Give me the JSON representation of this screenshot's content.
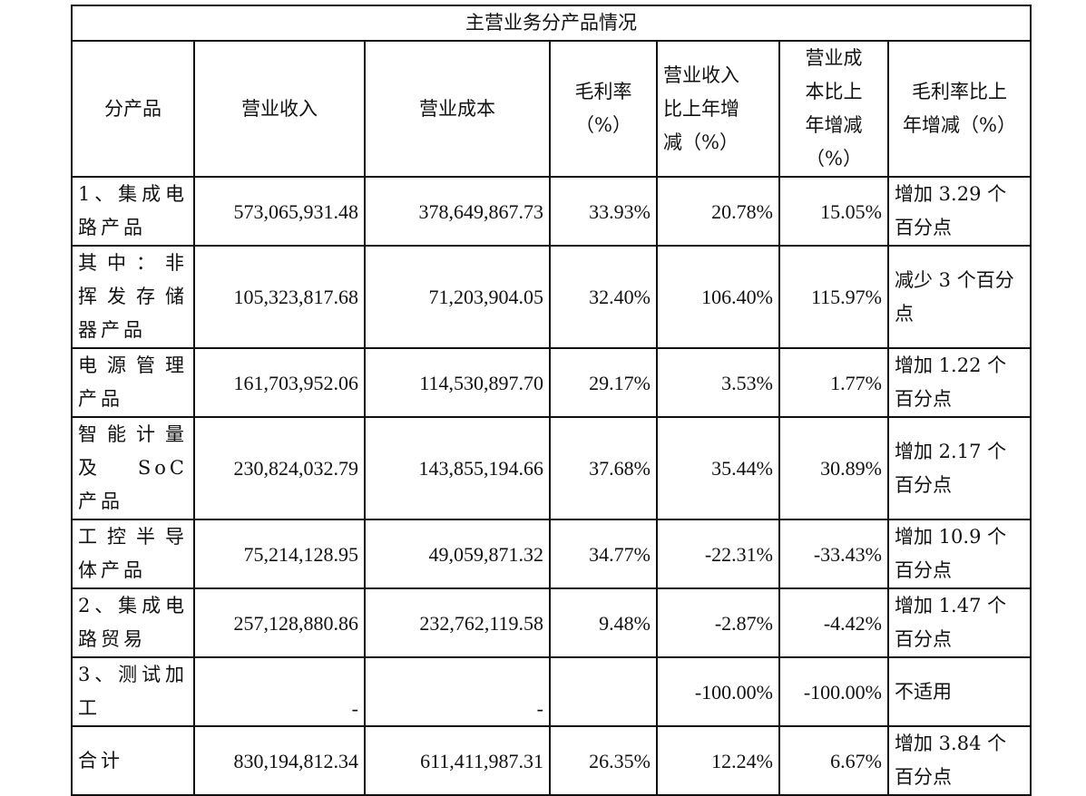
{
  "table_title": "主营业务分产品情况",
  "headers": {
    "product": "分产品",
    "revenue": "营业收入",
    "cost": "营业成本",
    "gross_margin": "毛利率\n（%）",
    "revenue_change": "营业收入\n比上年增\n减（%）",
    "cost_change": "营业成\n本比上\n年增减\n（%）",
    "margin_change": "毛利率比上\n年增减（%）"
  },
  "rows": [
    {
      "product": "1、集成电路产品",
      "revenue": "573,065,931.48",
      "cost": "378,649,867.73",
      "gross_margin": "33.93%",
      "revenue_change": "20.78%",
      "cost_change": "15.05%",
      "margin_change": "增加 3.29 个百分点"
    },
    {
      "product": "其中：非挥发存储器产品",
      "revenue": "105,323,817.68",
      "cost": "71,203,904.05",
      "gross_margin": "32.40%",
      "revenue_change": "106.40%",
      "cost_change": "115.97%",
      "margin_change": "减少 3 个百分点"
    },
    {
      "product": "电源管理产品",
      "revenue": "161,703,952.06",
      "cost": "114,530,897.70",
      "gross_margin": "29.17%",
      "revenue_change": "3.53%",
      "cost_change": "1.77%",
      "margin_change": "增加 1.22 个百分点"
    },
    {
      "product": "智能计量及 SoC 产品",
      "revenue": "230,824,032.79",
      "cost": "143,855,194.66",
      "gross_margin": "37.68%",
      "revenue_change": "35.44%",
      "cost_change": "30.89%",
      "margin_change": "增加 2.17 个百分点"
    },
    {
      "product": "工控半导体产品",
      "revenue": "75,214,128.95",
      "cost": "49,059,871.32",
      "gross_margin": "34.77%",
      "revenue_change": "-22.31%",
      "cost_change": "-33.43%",
      "margin_change": "增加 10.9 个百分点"
    },
    {
      "product": "2、集成电路贸易",
      "revenue": "257,128,880.86",
      "cost": "232,762,119.58",
      "gross_margin": "9.48%",
      "revenue_change": "-2.87%",
      "cost_change": "-4.42%",
      "margin_change": "增加 1.47 个百分点"
    },
    {
      "product": "3、测试加工",
      "revenue": "-",
      "cost": "-",
      "gross_margin": "",
      "revenue_change": "-100.00%",
      "cost_change": "-100.00%",
      "margin_change": "不适用"
    },
    {
      "product": "合计",
      "revenue": "830,194,812.34",
      "cost": "611,411,987.31",
      "gross_margin": "26.35%",
      "revenue_change": "12.24%",
      "cost_change": "6.67%",
      "margin_change": "增加 3.84 个百分点"
    }
  ]
}
